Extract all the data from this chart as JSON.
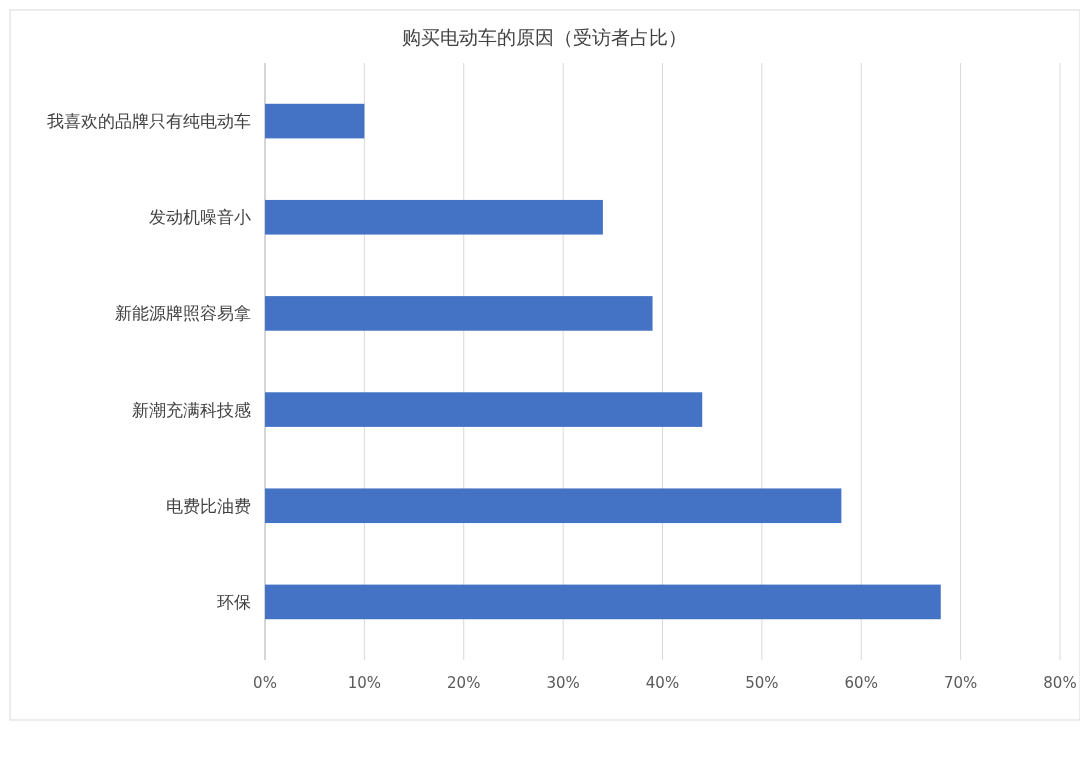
{
  "chart_data": {
    "type": "bar",
    "orientation": "horizontal",
    "title": "购买电动车的原因（受访者占比）",
    "categories": [
      "我喜欢的品牌只有纯电动车",
      "发动机噪音小",
      "新能源牌照容易拿",
      "新潮充满科技感",
      "电费比油费",
      "环保"
    ],
    "values": [
      10,
      34,
      39,
      44,
      58,
      68
    ],
    "color": "#4472c4",
    "xlim": [
      0,
      80
    ],
    "xticks": [
      {
        "value": 0,
        "label": "0%"
      },
      {
        "value": 10,
        "label": "10%"
      },
      {
        "value": 20,
        "label": "20%"
      },
      {
        "value": 30,
        "label": "30%"
      },
      {
        "value": 40,
        "label": "40%"
      },
      {
        "value": 50,
        "label": "50%"
      },
      {
        "value": 60,
        "label": "60%"
      },
      {
        "value": 70,
        "label": "70%"
      },
      {
        "value": 80,
        "label": "80%"
      }
    ],
    "grid": "x"
  }
}
